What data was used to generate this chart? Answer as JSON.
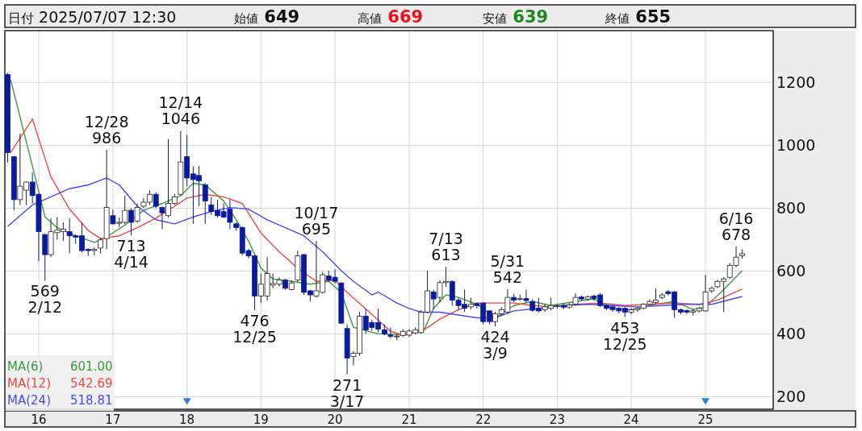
{
  "chart_data": {
    "type": "candlestick",
    "title": "日付 2025/07/07 12:30",
    "x": [
      "2015-08",
      "2015-09",
      "2015-10",
      "2015-11",
      "2015-12",
      "2016-01",
      "2016-02",
      "2016-03",
      "2016-04",
      "2016-05",
      "2016-06",
      "2016-07",
      "2016-08",
      "2016-09",
      "2016-10",
      "2016-11",
      "2016-12",
      "2017-01",
      "2017-02",
      "2017-03",
      "2017-04",
      "2017-05",
      "2017-06",
      "2017-07",
      "2017-08",
      "2017-09",
      "2017-10",
      "2017-11",
      "2017-12",
      "2018-01",
      "2018-02",
      "2018-03",
      "2018-04",
      "2018-05",
      "2018-06",
      "2018-07",
      "2018-08",
      "2018-09",
      "2018-10",
      "2018-11",
      "2018-12",
      "2019-01",
      "2019-02",
      "2019-03",
      "2019-04",
      "2019-05",
      "2019-06",
      "2019-07",
      "2019-08",
      "2019-09",
      "2019-10",
      "2019-11",
      "2019-12",
      "2020-01",
      "2020-02",
      "2020-03",
      "2020-04",
      "2020-05",
      "2020-06",
      "2020-07",
      "2020-08",
      "2020-09",
      "2020-10",
      "2020-11",
      "2020-12",
      "2021-01",
      "2021-02",
      "2021-03",
      "2021-04",
      "2021-05",
      "2021-06",
      "2021-07",
      "2021-08",
      "2021-09",
      "2021-10",
      "2021-11",
      "2021-12",
      "2022-01",
      "2022-02",
      "2022-03",
      "2022-04",
      "2022-05",
      "2022-06",
      "2022-07",
      "2022-08",
      "2022-09",
      "2022-10",
      "2022-11",
      "2022-12",
      "2023-01",
      "2023-02",
      "2023-03",
      "2023-04",
      "2023-05",
      "2023-06",
      "2023-07",
      "2023-08",
      "2023-09",
      "2023-10",
      "2023-11",
      "2023-12",
      "2024-01",
      "2024-02",
      "2024-03",
      "2024-04",
      "2024-05",
      "2024-06",
      "2024-07",
      "2024-08",
      "2024-09",
      "2024-10",
      "2024-11",
      "2024-12",
      "2025-01",
      "2025-02",
      "2025-03",
      "2025-04",
      "2025-05",
      "2025-06",
      "2025-07"
    ],
    "ohlc": [
      [
        1225,
        1230,
        945,
        977
      ],
      [
        964,
        966,
        793,
        827
      ],
      [
        827,
        1037,
        810,
        870
      ],
      [
        857,
        885,
        810,
        883
      ],
      [
        883,
        913,
        815,
        840
      ],
      [
        844,
        846,
        631,
        725
      ],
      [
        716,
        720,
        569,
        652
      ],
      [
        652,
        768,
        644,
        725
      ],
      [
        722,
        772,
        700,
        730
      ],
      [
        725,
        755,
        695,
        733
      ],
      [
        725,
        768,
        656,
        712
      ],
      [
        712,
        716,
        686,
        708
      ],
      [
        712,
        755,
        660,
        665
      ],
      [
        669,
        672,
        648,
        665
      ],
      [
        665,
        675,
        650,
        669
      ],
      [
        673,
        705,
        656,
        699
      ],
      [
        703,
        986,
        669,
        802
      ],
      [
        776,
        795,
        748,
        750
      ],
      [
        752,
        770,
        740,
        755
      ],
      [
        755,
        840,
        750,
        793
      ],
      [
        793,
        800,
        713,
        755
      ],
      [
        759,
        815,
        753,
        802
      ],
      [
        806,
        832,
        800,
        819
      ],
      [
        819,
        857,
        810,
        844
      ],
      [
        844,
        850,
        800,
        806
      ],
      [
        802,
        805,
        733,
        785
      ],
      [
        776,
        1020,
        770,
        815
      ],
      [
        815,
        845,
        810,
        836
      ],
      [
        844,
        1046,
        840,
        947
      ],
      [
        964,
        1033,
        870,
        896
      ],
      [
        909,
        934,
        750,
        891
      ],
      [
        904,
        934,
        806,
        887
      ],
      [
        874,
        880,
        750,
        823
      ],
      [
        810,
        836,
        778,
        789
      ],
      [
        793,
        827,
        770,
        776
      ],
      [
        789,
        815,
        768,
        772
      ],
      [
        797,
        827,
        733,
        755
      ],
      [
        750,
        755,
        729,
        738
      ],
      [
        738,
        742,
        650,
        657
      ],
      [
        665,
        670,
        640,
        648
      ],
      [
        648,
        652,
        476,
        520
      ],
      [
        520,
        592,
        498,
        558
      ],
      [
        520,
        644,
        506,
        592
      ],
      [
        555,
        592,
        545,
        560
      ],
      [
        558,
        580,
        550,
        571
      ],
      [
        571,
        575,
        540,
        545
      ],
      [
        541,
        570,
        538,
        562
      ],
      [
        571,
        665,
        565,
        648
      ],
      [
        652,
        655,
        524,
        532
      ],
      [
        537,
        540,
        503,
        524
      ],
      [
        520,
        695,
        515,
        537
      ],
      [
        532,
        597,
        528,
        588
      ],
      [
        584,
        601,
        566,
        571
      ],
      [
        580,
        605,
        560,
        567
      ],
      [
        562,
        565,
        432,
        434
      ],
      [
        417,
        430,
        271,
        323
      ],
      [
        328,
        345,
        300,
        338
      ],
      [
        338,
        470,
        330,
        456
      ],
      [
        456,
        480,
        400,
        413
      ],
      [
        436,
        445,
        410,
        420
      ],
      [
        436,
        480,
        405,
        415
      ],
      [
        413,
        430,
        395,
        400
      ],
      [
        396,
        420,
        385,
        392
      ],
      [
        392,
        400,
        380,
        393
      ],
      [
        395,
        415,
        390,
        408
      ],
      [
        396,
        415,
        390,
        409
      ],
      [
        403,
        420,
        398,
        413
      ],
      [
        404,
        475,
        400,
        469
      ],
      [
        469,
        601,
        465,
        537
      ],
      [
        533,
        540,
        477,
        511
      ],
      [
        516,
        570,
        500,
        563
      ],
      [
        563,
        613,
        550,
        567
      ],
      [
        567,
        570,
        490,
        507
      ],
      [
        507,
        515,
        475,
        490
      ],
      [
        494,
        541,
        470,
        481
      ],
      [
        486,
        515,
        478,
        494
      ],
      [
        496,
        500,
        480,
        490
      ],
      [
        498,
        500,
        430,
        439
      ],
      [
        473,
        475,
        430,
        439
      ],
      [
        439,
        470,
        424,
        464
      ],
      [
        464,
        485,
        458,
        477
      ],
      [
        469,
        542,
        465,
        516
      ],
      [
        516,
        528,
        500,
        507
      ],
      [
        510,
        525,
        505,
        512
      ],
      [
        512,
        541,
        500,
        506
      ],
      [
        503,
        510,
        470,
        475
      ],
      [
        481,
        515,
        468,
        473
      ],
      [
        477,
        495,
        470,
        486
      ],
      [
        481,
        515,
        475,
        490
      ],
      [
        488,
        495,
        480,
        490
      ],
      [
        490,
        498,
        478,
        485
      ],
      [
        485,
        498,
        480,
        492
      ],
      [
        494,
        528,
        490,
        516
      ],
      [
        517,
        522,
        505,
        511
      ],
      [
        511,
        522,
        505,
        518
      ],
      [
        520,
        525,
        505,
        512
      ],
      [
        524,
        530,
        485,
        490
      ],
      [
        490,
        495,
        475,
        481
      ],
      [
        486,
        490,
        470,
        477
      ],
      [
        481,
        485,
        465,
        473
      ],
      [
        481,
        485,
        453,
        469
      ],
      [
        469,
        482,
        462,
        477
      ],
      [
        477,
        485,
        470,
        481
      ],
      [
        481,
        498,
        478,
        494
      ],
      [
        494,
        510,
        490,
        503
      ],
      [
        500,
        545,
        495,
        507
      ],
      [
        516,
        530,
        510,
        524
      ],
      [
        534,
        540,
        522,
        528
      ],
      [
        533,
        537,
        451,
        477
      ],
      [
        477,
        480,
        462,
        469
      ],
      [
        474,
        478,
        463,
        469
      ],
      [
        469,
        480,
        458,
        473
      ],
      [
        473,
        485,
        468,
        481
      ],
      [
        473,
        588,
        470,
        533
      ],
      [
        537,
        550,
        530,
        545
      ],
      [
        550,
        572,
        545,
        567
      ],
      [
        567,
        580,
        469,
        575
      ],
      [
        580,
        625,
        575,
        618
      ],
      [
        618,
        678,
        612,
        644
      ],
      [
        649,
        669,
        639,
        655
      ]
    ],
    "series": [
      {
        "type": "line",
        "name": "MA(6) 601.00",
        "color": "#3f9a3f",
        "x": [
          "2015-08-16",
          "2015-12",
          "2016-02",
          "2016-04",
          "2016-07",
          "2016-10",
          "2016-12",
          "2017-03",
          "2017-06",
          "2017-09",
          "2017-12",
          "2018-02",
          "2018-04",
          "2018-07",
          "2018-09",
          "2018-11",
          "2019-01",
          "2019-03",
          "2019-06",
          "2019-09",
          "2019-12",
          "2020-02",
          "2020-04",
          "2020-08",
          "2020-12",
          "2021-03-16",
          "2021-05",
          "2021-07",
          "2021-09",
          "2021-12",
          "2022-03",
          "2022-06",
          "2022-09",
          "2022-12",
          "2023-04",
          "2023-07",
          "2023-10",
          "2024-01",
          "2024-05",
          "2024-08",
          "2024-11",
          "2025-01",
          "2025-04",
          "2025-07"
        ],
        "values": [
          1208,
          934,
          772,
          738,
          712,
          691,
          708,
          746,
          793,
          815,
          840,
          879,
          874,
          823,
          763,
          695,
          609,
          575,
          567,
          558,
          567,
          532,
          421,
          400,
          397,
          413,
          481,
          524,
          516,
          494,
          451,
          490,
          503,
          490,
          503,
          511,
          481,
          477,
          494,
          503,
          477,
          486,
          541,
          601.0
        ]
      },
      {
        "type": "line",
        "name": "MA(12) 542.69",
        "color": "#f04848",
        "x": [
          "2015-08-16",
          "2015-12",
          "2016-03",
          "2016-06",
          "2016-09",
          "2016-11",
          "2017-02",
          "2017-05",
          "2017-08",
          "2017-11",
          "2018-01",
          "2018-04",
          "2018-07",
          "2018-10",
          "2019-01",
          "2019-04",
          "2019-07",
          "2019-10",
          "2020-01",
          "2020-03",
          "2020-07",
          "2020-10",
          "2020-12",
          "2021-03-16",
          "2021-06",
          "2021-09",
          "2021-12",
          "2022-03",
          "2022-06",
          "2022-09",
          "2022-12",
          "2023-04",
          "2023-08",
          "2023-12",
          "2024-04",
          "2024-08",
          "2024-12",
          "2025-03",
          "2025-07"
        ],
        "values": [
          977,
          1084,
          900,
          797,
          729,
          703,
          712,
          738,
          768,
          806,
          832,
          844,
          836,
          815,
          721,
          661,
          609,
          567,
          571,
          532,
          462,
          408,
          396,
          413,
          447,
          477,
          498,
          498,
          498,
          490,
          486,
          494,
          498,
          490,
          494,
          498,
          494,
          507,
          542.69
        ]
      },
      {
        "type": "line",
        "name": "MA(24) 518.81",
        "color": "#4a4af0",
        "x": [
          "2015-08",
          "2015-12",
          "2016-03",
          "2016-06",
          "2016-09",
          "2016-12",
          "2017-02",
          "2017-05",
          "2017-08",
          "2017-11",
          "2018-02",
          "2018-05",
          "2018-08",
          "2018-11",
          "2019-02",
          "2019-05",
          "2019-08",
          "2019-11",
          "2020-02",
          "2020-04",
          "2020-07",
          "2020-08",
          "2020-11",
          "2021-01",
          "2021-03",
          "2021-06",
          "2021-09",
          "2021-12",
          "2022-03",
          "2022-06",
          "2022-10",
          "2023-02",
          "2023-06",
          "2023-10",
          "2024-02",
          "2024-06",
          "2024-10",
          "2025-02",
          "2025-07"
        ],
        "values": [
          742,
          810,
          836,
          862,
          874,
          896,
          874,
          806,
          763,
          750,
          772,
          789,
          802,
          797,
          763,
          738,
          712,
          661,
          601,
          567,
          524,
          533,
          498,
          481,
          469,
          469,
          460,
          451,
          451,
          473,
          481,
          490,
          494,
          490,
          486,
          490,
          494,
          494,
          518.81
        ]
      },
      {
        "type": "scatter",
        "color": "#2f7fe0",
        "marker": "triangle",
        "x": [
          "2018-01",
          "2025-01"
        ],
        "values": [
          185,
          185
        ]
      }
    ],
    "annotations": [
      "始値 649",
      "高値 669",
      "安値 639",
      "終値 655",
      {
        "text": "569\n2/12",
        "x": "2016-02",
        "y": 569
      },
      {
        "text": "12/28\n986",
        "x": "2016-12",
        "y": 986
      },
      {
        "text": "713\n4/14",
        "x": "2017-04",
        "y": 713
      },
      {
        "text": "12/14\n1046",
        "x": "2017-12",
        "y": 1046
      },
      {
        "text": "476\n12/25",
        "x": "2018-12",
        "y": 476
      },
      {
        "text": "10/17\n695",
        "x": "2019-10",
        "y": 695
      },
      {
        "text": "271\n3/17",
        "x": "2020-03",
        "y": 271
      },
      {
        "text": "7/13\n613",
        "x": "2021-07",
        "y": 613
      },
      {
        "text": "424\n3/9",
        "x": "2022-03",
        "y": 424
      },
      {
        "text": "5/31\n542",
        "x": "2022-05",
        "y": 542
      },
      {
        "text": "453\n12/25",
        "x": "2023-12",
        "y": 453
      },
      {
        "text": "6/16\n678",
        "x": "2025-06",
        "y": 678
      }
    ],
    "xlim": [
      "2015-07-18",
      "2025-12-01"
    ],
    "xticks": [
      {
        "value": "2016-01",
        "label": "16"
      },
      {
        "value": "2017-01",
        "label": "17"
      },
      {
        "value": "2018-01",
        "label": "18"
      },
      {
        "value": "2019-01",
        "label": "19"
      },
      {
        "value": "2020-01",
        "label": "20"
      },
      {
        "value": "2021-01",
        "label": "21"
      },
      {
        "value": "2022-01",
        "label": "22"
      },
      {
        "value": "2023-01",
        "label": "23"
      },
      {
        "value": "2024-01",
        "label": "24"
      },
      {
        "value": "2025-01",
        "label": "25"
      }
    ],
    "ylim": [
      160,
      1365
    ],
    "yticks": [
      200,
      400,
      600,
      800,
      1000,
      1200
    ],
    "grid": true
  }
}
